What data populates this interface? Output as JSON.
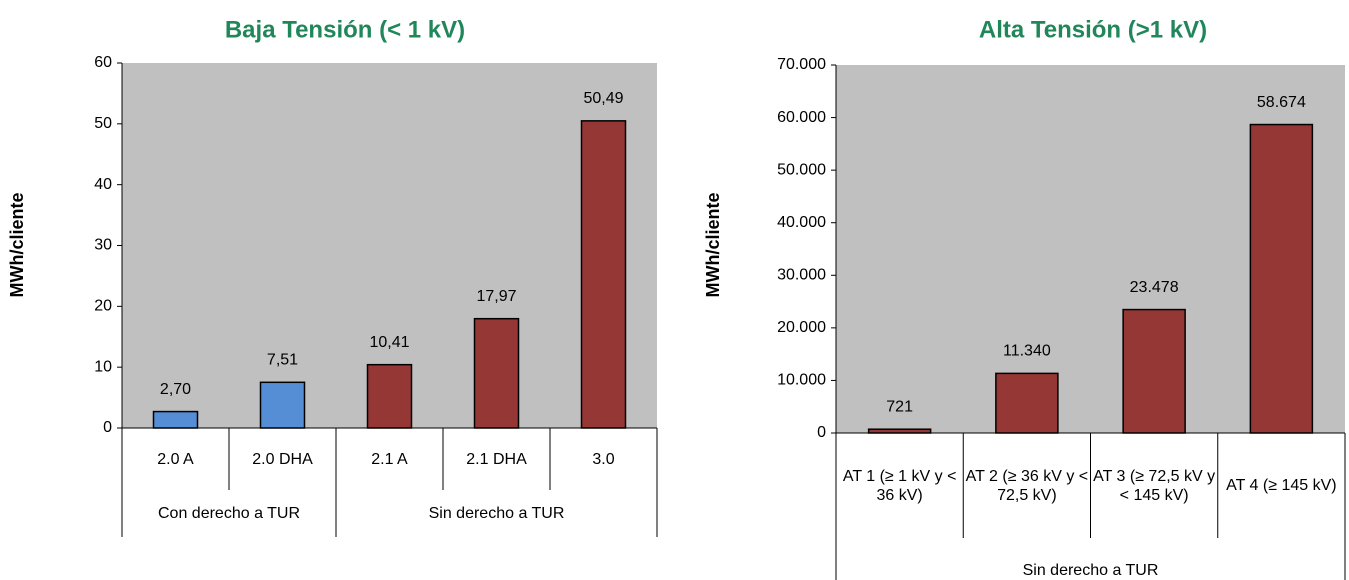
{
  "chart_data": [
    {
      "type": "bar",
      "title": "Baja Tensión  (< 1 kV)",
      "y_label": "MWh/cliente",
      "categories": [
        "2.0 A",
        "2.0 DHA",
        "2.1 A",
        "2.1 DHA",
        "3.0"
      ],
      "values": [
        2.7,
        7.51,
        10.41,
        17.97,
        50.49
      ],
      "value_labels": [
        "2,70",
        "7,51",
        "10,41",
        "17,97",
        "50,49"
      ],
      "colors": [
        "#558ed5",
        "#558ed5",
        "#953735",
        "#953735",
        "#953735"
      ],
      "groups": [
        {
          "name": "Con derecho a TUR",
          "categories": [
            "2.0 A",
            "2.0 DHA"
          ]
        },
        {
          "name": "Sin derecho a TUR",
          "categories": [
            "2.1 A",
            "2.1 DHA",
            "3.0"
          ]
        }
      ],
      "ylim": [
        0,
        60
      ],
      "yticks": [
        0,
        10,
        20,
        30,
        40,
        50,
        60
      ],
      "background": "#c0c0c0"
    },
    {
      "type": "bar",
      "title": "Alta Tensión  (>1 kV)",
      "y_label": "MWh/cliente",
      "categories": [
        "AT 1 (≥  1 kV y  < 36 kV)",
        "AT 2 (≥  36 kV y < 72,5 kV)",
        "AT 3 (≥ 72,5 kV y < 145 kV)",
        "AT 4 (≥ 145 kV)"
      ],
      "values": [
        721,
        11340,
        23478,
        58674
      ],
      "value_labels": [
        "721",
        "11.340",
        "23.478",
        "58.674"
      ],
      "colors": [
        "#953735",
        "#953735",
        "#953735",
        "#953735"
      ],
      "groups": [
        {
          "name": "Sin derecho a TUR",
          "categories": [
            "AT 1 (≥  1 kV y  < 36 kV)",
            "AT 2 (≥  36 kV y < 72,5 kV)",
            "AT 3 (≥ 72,5 kV y < 145 kV)",
            "AT 4 (≥ 145 kV)"
          ]
        }
      ],
      "ylim": [
        0,
        70000
      ],
      "yticks": [
        0,
        {
          "value": 10000,
          "label": "10.000"
        },
        {
          "value": 20000,
          "label": "20.000"
        },
        {
          "value": 30000,
          "label": "30.000"
        },
        {
          "value": 40000,
          "label": "40.000"
        },
        {
          "value": 50000,
          "label": "50.000"
        },
        {
          "value": 60000,
          "label": "60.000"
        },
        {
          "value": 70000,
          "label": "70.000"
        }
      ],
      "background": "#c0c0c0"
    }
  ]
}
